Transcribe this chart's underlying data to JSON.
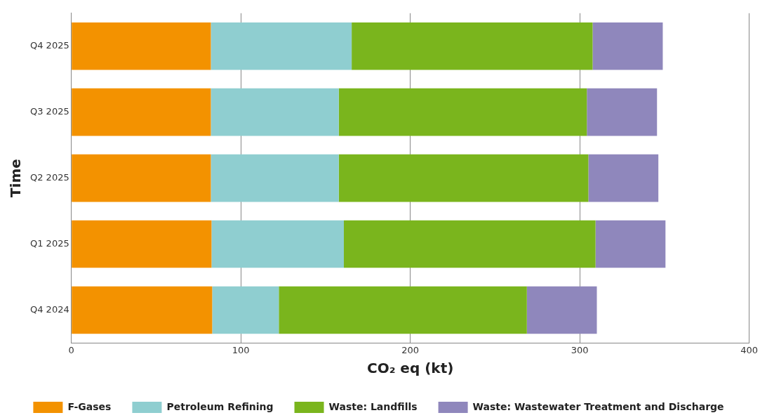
{
  "chart_data": {
    "type": "bar",
    "orientation": "horizontal",
    "stacked": true,
    "xlabel": "CO₂ eq (kt)",
    "ylabel": "Time",
    "categories": [
      "Q4 2025",
      "Q3 2025",
      "Q2 2025",
      "Q1 2025",
      "Q4 2024"
    ],
    "series": [
      {
        "name": "F-Gases",
        "color": "#f39200",
        "values": [
          82.3,
          82.3,
          82.3,
          82.7,
          83.1
        ]
      },
      {
        "name": "Petroleum Refining",
        "color": "#8fced0",
        "values": [
          83.1,
          75.5,
          75.5,
          78.1,
          39.3
        ]
      },
      {
        "name": "Waste: Landfills",
        "color": "#7ab51d",
        "values": [
          142.2,
          146.4,
          147.3,
          148.5,
          146.4
        ]
      },
      {
        "name": "Waste: Wastewater Treatment and Discharge",
        "color": "#8f87bc",
        "values": [
          41.4,
          41.4,
          41.3,
          41.3,
          41.3
        ]
      }
    ],
    "xlim": [
      0,
      400
    ],
    "xticks": [
      0,
      100,
      200,
      300,
      400
    ],
    "grid": "x",
    "legend": "bottom"
  }
}
